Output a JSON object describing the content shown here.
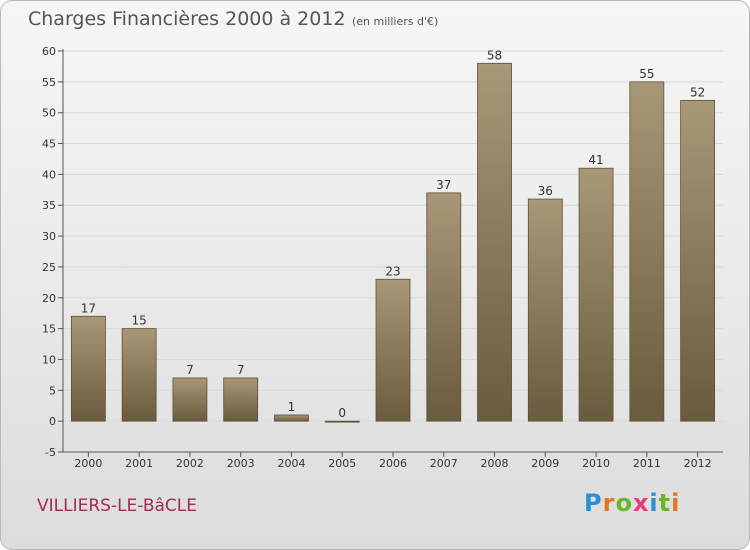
{
  "header": {
    "title": "Charges Financières 2000 à 2012",
    "subtitle": "(en milliers d'€)"
  },
  "footer": {
    "commune": "VILLIERS-LE-BâCLE",
    "brand_letters": [
      "P",
      "r",
      "o",
      "x",
      "i",
      "t",
      "i"
    ],
    "brand_colors": [
      "#2a8fd6",
      "#e8741b",
      "#6bb52a",
      "#e83a7a",
      "#2a8fd6",
      "#6bb52a",
      "#e8741b"
    ]
  },
  "colors": {
    "bar_top": "#a89878",
    "bar_bottom": "#6b5b3e",
    "bar_edge": "#5d4f36",
    "axis": "#555555",
    "grid": "#d8d8d8"
  },
  "chart_data": {
    "type": "bar",
    "title": "Charges Financières 2000 à 2012",
    "subtitle": "(en milliers d'€)",
    "categories": [
      "2000",
      "2001",
      "2002",
      "2003",
      "2004",
      "2005",
      "2006",
      "2007",
      "2008",
      "2009",
      "2010",
      "2011",
      "2012"
    ],
    "values": [
      17,
      15,
      7,
      7,
      1,
      0,
      23,
      37,
      58,
      36,
      41,
      55,
      52
    ],
    "ylim": [
      -5,
      60
    ],
    "yticks": [
      -5,
      0,
      5,
      10,
      15,
      20,
      25,
      30,
      35,
      40,
      45,
      50,
      55,
      60
    ],
    "grid": true,
    "xlabel": "",
    "ylabel": ""
  }
}
